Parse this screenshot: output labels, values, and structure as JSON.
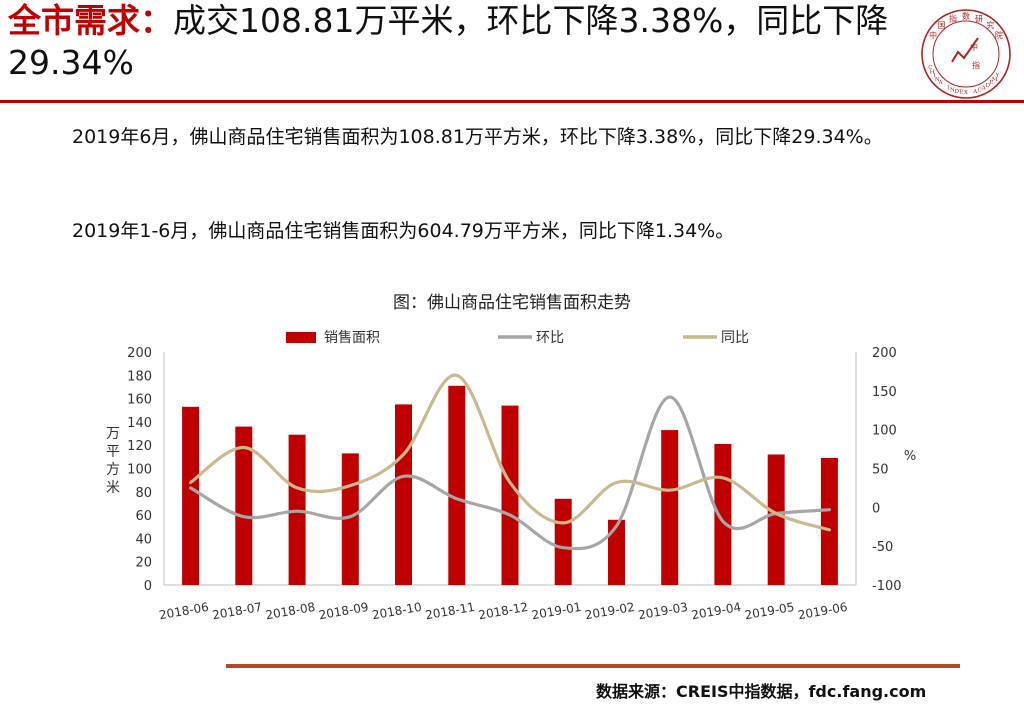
{
  "header": {
    "title_highlight": "全市需求：",
    "title_rest": "成交108.81万平米，环比下降3.38%，同比下降29.34%"
  },
  "logo": {
    "text_cn": "中国指数研究院",
    "text_en": "CHINA INDEX ACADEMY",
    "center_chars": [
      "中",
      "指"
    ],
    "color": "#b22222"
  },
  "body": {
    "p1": "2019年6月，佛山商品住宅销售面积为108.81万平方米，环比下降3.38%，同比下降29.34%。",
    "p2": "2019年1-6月，佛山商品住宅销售面积为604.79万平方米，同比下降1.34%。"
  },
  "chart_title": "图：佛山商品住宅销售面积走势",
  "source": "数据来源：CREIS中指数据，fdc.fang.com",
  "chart_data": {
    "type": "bar",
    "categories": [
      "2018-06",
      "2018-07",
      "2018-08",
      "2018-09",
      "2018-10",
      "2018-11",
      "2018-12",
      "2019-01",
      "2019-02",
      "2019-03",
      "2019-04",
      "2019-05",
      "2019-06"
    ],
    "series": [
      {
        "name": "销售面积",
        "type": "bar",
        "axis": "left",
        "color": "#c00000",
        "values": [
          153,
          136,
          129,
          113,
          155,
          171,
          154,
          74,
          56,
          133,
          121,
          112,
          109
        ]
      },
      {
        "name": "环比",
        "type": "line",
        "axis": "right",
        "color": "#a6a6a6",
        "values": [
          25,
          -12,
          -5,
          -12,
          40,
          11,
          -10,
          -52,
          -24,
          142,
          -18,
          -8,
          -3
        ]
      },
      {
        "name": "同比",
        "type": "line",
        "axis": "right",
        "color": "#c9b98d",
        "values": [
          32,
          77,
          25,
          28,
          68,
          170,
          32,
          -20,
          32,
          22,
          38,
          -8,
          -29
        ]
      }
    ],
    "ylabel_left": "万平方米",
    "ylabel_right": "%",
    "ylim_left": [
      0,
      200
    ],
    "ylim_right": [
      -100,
      200
    ],
    "yticks_left": [
      0,
      20,
      40,
      60,
      80,
      100,
      120,
      140,
      160,
      180,
      200
    ],
    "yticks_right": [
      -100,
      -50,
      0,
      50,
      100,
      150,
      200
    ],
    "legend_position": "top",
    "grid": false
  }
}
